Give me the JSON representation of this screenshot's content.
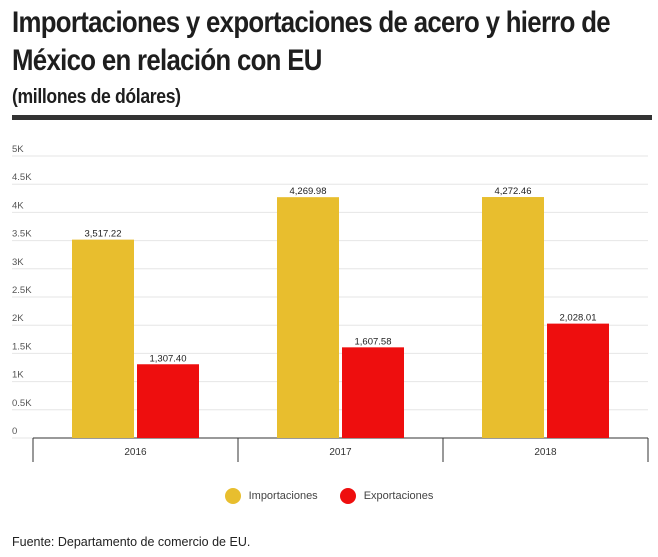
{
  "header": {
    "title": "Importaciones y exportaciones de acero y hierro de México en relación con EU",
    "subtitle": "(millones de dólares)"
  },
  "chart_data": {
    "type": "bar",
    "categories": [
      "2016",
      "2017",
      "2018"
    ],
    "series": [
      {
        "name": "Importaciones",
        "color": "#e8be2e",
        "values": [
          3517.22,
          4269.98,
          4272.46
        ],
        "labels": [
          "3,517.22",
          "4,269.98",
          "4,272.46"
        ]
      },
      {
        "name": "Exportaciones",
        "color": "#ee0e0e",
        "values": [
          1307.4,
          1607.58,
          2028.01
        ],
        "labels": [
          "1,307.40",
          "1,607.58",
          "2,028.01"
        ]
      }
    ],
    "ylim": [
      0,
      5000
    ],
    "yticks": [
      0,
      500,
      1000,
      1500,
      2000,
      2500,
      3000,
      3500,
      4000,
      4500,
      5000
    ],
    "ytick_labels": [
      "0",
      "0.5K",
      "1K",
      "1.5K",
      "2K",
      "2.5K",
      "3K",
      "3.5K",
      "4K",
      "4.5K",
      "5K"
    ],
    "grid": true,
    "legend_position": "bottom"
  },
  "footer": {
    "source": "Fuente: Departamento de comercio de EU."
  }
}
